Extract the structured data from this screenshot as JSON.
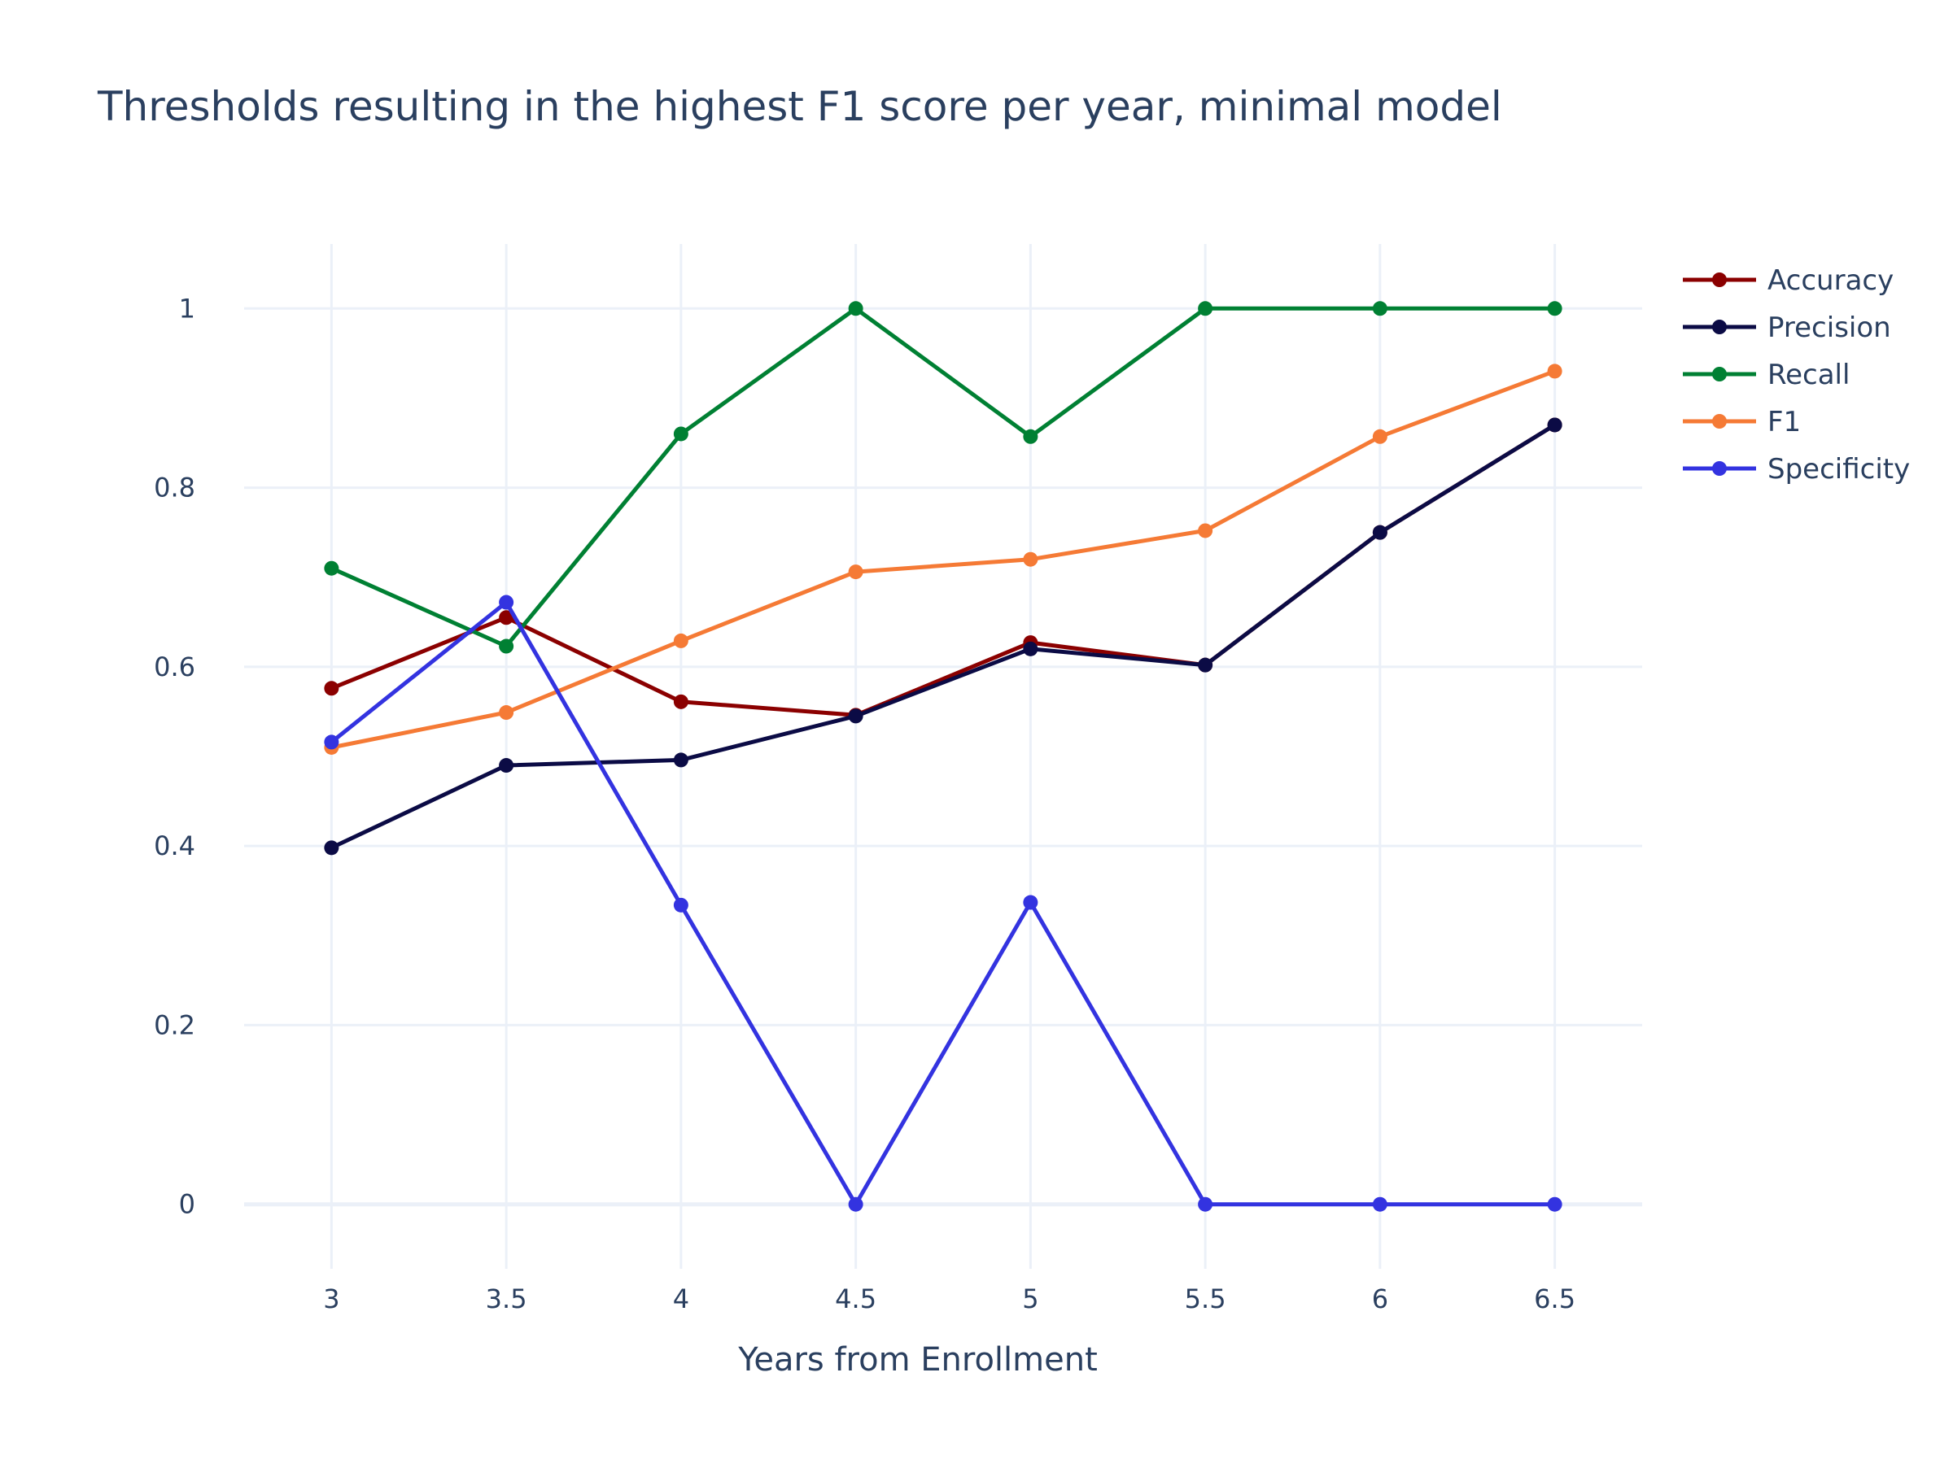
{
  "chart_data": {
    "type": "line",
    "title": "Thresholds resulting in the highest F1 score per year, minimal model",
    "xlabel": "Years from Enrollment",
    "ylabel": "",
    "x": [
      3,
      3.5,
      4,
      4.5,
      5,
      5.5,
      6,
      6.5
    ],
    "xlim": [
      2.75,
      6.75
    ],
    "ylim": [
      -0.072,
      1.072
    ],
    "xticks": [
      "3",
      "3.5",
      "4",
      "4.5",
      "5",
      "5.5",
      "6",
      "6.5"
    ],
    "yticks": [
      "0",
      "0.2",
      "0.4",
      "0.6",
      "0.8",
      "1"
    ],
    "ytick_values": [
      0,
      0.2,
      0.4,
      0.6,
      0.8,
      1
    ],
    "grid": true,
    "legend_position": "top-right",
    "series": [
      {
        "name": "Accuracy",
        "color": "#8b0000",
        "values": [
          0.576,
          0.655,
          0.561,
          0.546,
          0.627,
          0.602,
          0.75,
          0.87
        ]
      },
      {
        "name": "Precision",
        "color": "#0b0b45",
        "values": [
          0.398,
          0.49,
          0.496,
          0.545,
          0.62,
          0.602,
          0.75,
          0.87
        ]
      },
      {
        "name": "Recall",
        "color": "#008033",
        "values": [
          0.71,
          0.623,
          0.86,
          1.0,
          0.857,
          1.0,
          1.0,
          1.0
        ]
      },
      {
        "name": "F1",
        "color": "#f57a35",
        "values": [
          0.51,
          0.549,
          0.629,
          0.706,
          0.72,
          0.752,
          0.857,
          0.93
        ]
      },
      {
        "name": "Specificity",
        "color": "#3333e0",
        "values": [
          0.516,
          0.672,
          0.334,
          0.0,
          0.337,
          0.0,
          0.0,
          0.0
        ]
      }
    ]
  }
}
